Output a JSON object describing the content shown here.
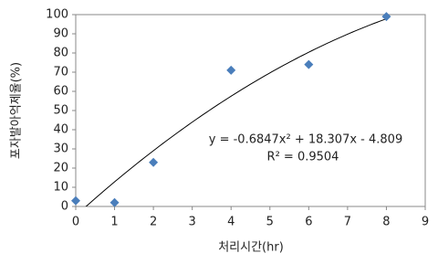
{
  "chart_data": {
    "type": "scatter",
    "x_label": "처리시간(hr)",
    "y_label": "포자발아억제율(%)",
    "series": [
      {
        "name": "포자발아억제율",
        "color": "#4a7ebb",
        "x": [
          0,
          1,
          2,
          4,
          6,
          8
        ],
        "values": [
          3,
          2,
          23,
          71,
          74,
          99
        ]
      }
    ],
    "trendline": {
      "equation": "y = -0.6847x² + 18.307x - 4.809",
      "r_squared": "R² = 0.9504",
      "coefficients": [
        -0.6847,
        18.307,
        -4.809
      ],
      "color": "#000000"
    },
    "xlim": [
      0,
      9
    ],
    "ylim": [
      0,
      100
    ],
    "xticks": [
      0,
      1,
      2,
      3,
      4,
      5,
      6,
      7,
      8,
      9
    ],
    "yticks": [
      0,
      10,
      20,
      30,
      40,
      50,
      60,
      70,
      80,
      90,
      100
    ],
    "grid": false
  }
}
